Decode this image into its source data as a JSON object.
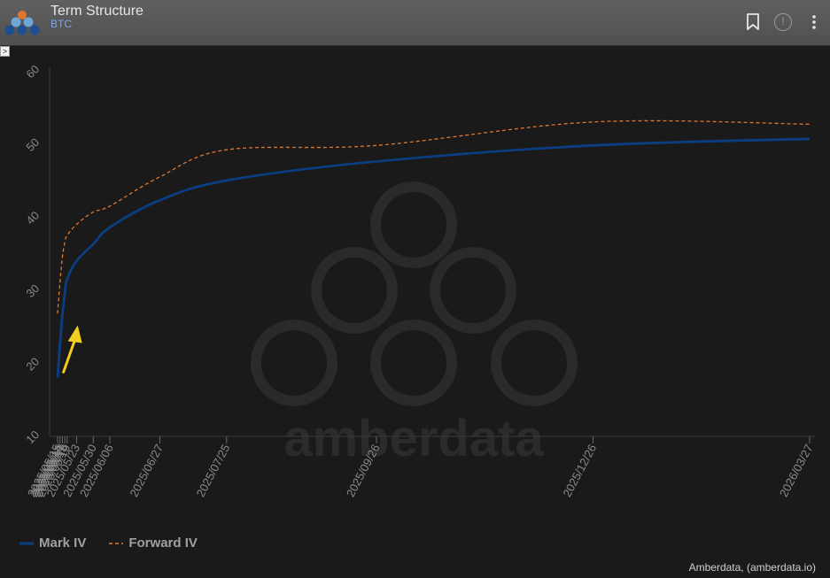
{
  "header": {
    "title": "Term Structure",
    "subtitle": "BTC",
    "info_glyph": "!",
    "expand_glyph": ">",
    "icons": [
      "amberdata-logo-icon",
      "bookmark-icon",
      "info-icon",
      "kebab-menu-icon"
    ]
  },
  "watermark": {
    "text": "amberdata"
  },
  "colors": {
    "background": "#1a1a1a",
    "header": "#555555",
    "mark_iv": "#0b3d80",
    "forward_iv": "#e0772e",
    "annotation_arrow": "#f2cf1e",
    "axis_text": "#8a8a8a"
  },
  "chart_data": {
    "type": "line",
    "title": "",
    "xlabel": "",
    "ylabel": "",
    "ylim": [
      10,
      60
    ],
    "y_ticks": [
      10,
      20,
      30,
      40,
      50,
      60
    ],
    "grid": false,
    "legend_position": "bottom-left",
    "x_tick_labels": [
      "2025/05/15",
      "2025/05/16",
      "2025/05/17",
      "2025/05/18",
      "2025/05/19",
      "2025/05/23",
      "2025/05/30",
      "2025/06/06",
      "2025/06/27",
      "2025/07/25",
      "2025/09/26",
      "2025/12/26",
      "2026/03/27"
    ],
    "x": [
      "2025/05/15",
      "2025/05/16",
      "2025/05/17",
      "2025/05/18",
      "2025/05/19",
      "2025/05/23",
      "2025/05/30",
      "2025/06/06",
      "2025/06/27",
      "2025/07/25",
      "2025/09/26",
      "2025/12/26",
      "2026/03/27"
    ],
    "series": [
      {
        "name": "Mark IV",
        "style": "solid",
        "values": [
          18.0,
          22.5,
          26.5,
          29.5,
          31.5,
          34.0,
          36.3,
          38.6,
          42.3,
          45.0,
          47.6,
          49.8,
          50.7
        ]
      },
      {
        "name": "Forward IV",
        "style": "dashed",
        "values": [
          26.8,
          31.0,
          34.5,
          36.5,
          37.5,
          39.0,
          40.7,
          41.5,
          45.5,
          49.2,
          49.8,
          53.0,
          52.7
        ]
      }
    ],
    "annotation": {
      "type": "arrow",
      "points_at_x": "2025/05/16"
    }
  },
  "legend": {
    "items": [
      {
        "label": "Mark IV"
      },
      {
        "label": "Forward IV"
      }
    ]
  },
  "credit": "Amberdata, (amberdata.io)"
}
